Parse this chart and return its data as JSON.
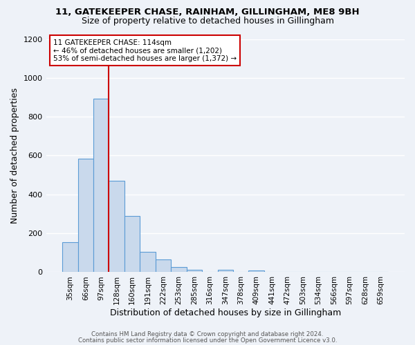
{
  "title1": "11, GATEKEEPER CHASE, RAINHAM, GILLINGHAM, ME8 9BH",
  "title2": "Size of property relative to detached houses in Gillingham",
  "xlabel": "Distribution of detached houses by size in Gillingham",
  "ylabel": "Number of detached properties",
  "bar_labels": [
    "35sqm",
    "66sqm",
    "97sqm",
    "128sqm",
    "160sqm",
    "191sqm",
    "222sqm",
    "253sqm",
    "285sqm",
    "316sqm",
    "347sqm",
    "378sqm",
    "409sqm",
    "441sqm",
    "472sqm",
    "503sqm",
    "534sqm",
    "566sqm",
    "597sqm",
    "628sqm",
    "659sqm"
  ],
  "bar_values": [
    155,
    585,
    893,
    470,
    290,
    105,
    65,
    28,
    13,
    0,
    12,
    0,
    8,
    0,
    0,
    0,
    0,
    0,
    0,
    0,
    0
  ],
  "bar_color": "#c9d9ec",
  "bar_edge_color": "#5b9bd5",
  "vline_x": 2.5,
  "vline_color": "#cc0000",
  "annotation_title": "11 GATEKEEPER CHASE: 114sqm",
  "annotation_line1": "← 46% of detached houses are smaller (1,202)",
  "annotation_line2": "53% of semi-detached houses are larger (1,372) →",
  "annotation_box_color": "#cc0000",
  "ylim": [
    0,
    1200
  ],
  "yticks": [
    0,
    200,
    400,
    600,
    800,
    1000,
    1200
  ],
  "footer1": "Contains HM Land Registry data © Crown copyright and database right 2024.",
  "footer2": "Contains public sector information licensed under the Open Government Licence v3.0.",
  "bg_color": "#eef2f8",
  "grid_color": "#ffffff"
}
